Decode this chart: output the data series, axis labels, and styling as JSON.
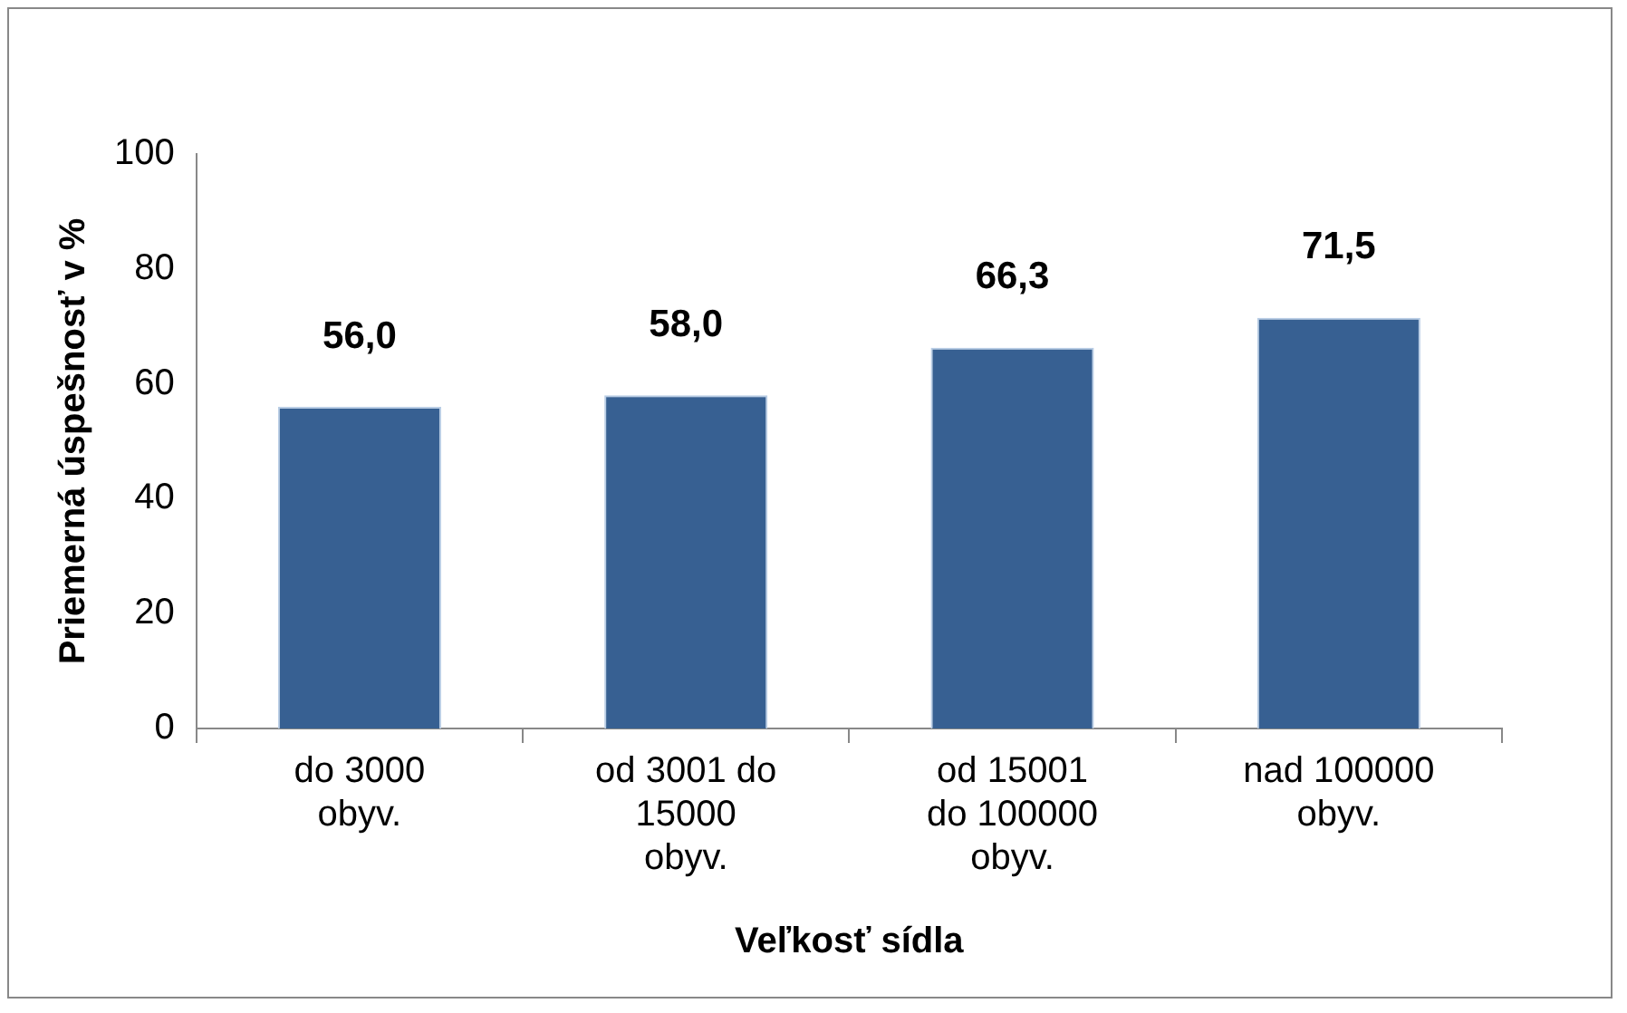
{
  "chart_data": {
    "type": "bar",
    "xlabel": "Veľkosť sídla",
    "ylabel": "Priemerná úspešnosť v %",
    "categories": [
      "do 3000 obyv.",
      "od 3001 do 15000 obyv.",
      "od 15001 do 100000 obyv.",
      "nad 100000 obyv."
    ],
    "values": [
      56.0,
      58.0,
      66.3,
      71.5
    ],
    "value_labels": [
      "56,0",
      "58,0",
      "66,3",
      "71,5"
    ],
    "color": "#376092",
    "ylim": [
      0,
      100
    ],
    "yticks": [
      0,
      20,
      40,
      60,
      80,
      100
    ],
    "grid": false,
    "legend": false
  }
}
